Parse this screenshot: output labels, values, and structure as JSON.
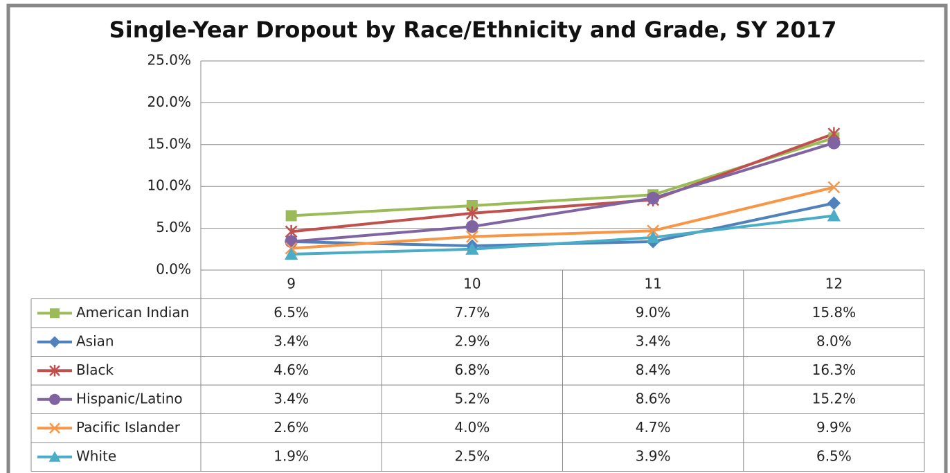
{
  "chart_data": {
    "type": "line",
    "title": "Single-Year Dropout by Race/Ethnicity and Grade, SY 2017",
    "categories": [
      "9",
      "10",
      "11",
      "12"
    ],
    "ylim": [
      0,
      25
    ],
    "yticks": [
      {
        "value": 0,
        "label": "0.0%"
      },
      {
        "value": 5,
        "label": "5.0%"
      },
      {
        "value": 10,
        "label": "10.0%"
      },
      {
        "value": 15,
        "label": "15.0%"
      },
      {
        "value": 20,
        "label": "20.0%"
      },
      {
        "value": 25,
        "label": "25.0%"
      }
    ],
    "grid": true,
    "series": [
      {
        "name": "American Indian",
        "color": "#9bbb59",
        "marker": "square",
        "values": [
          6.5,
          7.7,
          9.0,
          15.8
        ],
        "value_labels": [
          "6.5%",
          "7.7%",
          "9.0%",
          "15.8%"
        ]
      },
      {
        "name": "Asian",
        "color": "#4f81bd",
        "marker": "diamond",
        "values": [
          3.4,
          2.9,
          3.4,
          8.0
        ],
        "value_labels": [
          "3.4%",
          "2.9%",
          "3.4%",
          "8.0%"
        ]
      },
      {
        "name": "Black",
        "color": "#c0504d",
        "marker": "star",
        "values": [
          4.6,
          6.8,
          8.4,
          16.3
        ],
        "value_labels": [
          "4.6%",
          "6.8%",
          "8.4%",
          "16.3%"
        ]
      },
      {
        "name": "Hispanic/Latino",
        "color": "#8064a2",
        "marker": "circle",
        "values": [
          3.4,
          5.2,
          8.6,
          15.2
        ],
        "value_labels": [
          "3.4%",
          "5.2%",
          "8.6%",
          "15.2%"
        ]
      },
      {
        "name": "Pacific Islander",
        "color": "#f79646",
        "marker": "x",
        "values": [
          2.6,
          4.0,
          4.7,
          9.9
        ],
        "value_labels": [
          "2.6%",
          "4.0%",
          "4.7%",
          "9.9%"
        ]
      },
      {
        "name": "White",
        "color": "#4bacc6",
        "marker": "triangle",
        "values": [
          1.9,
          2.5,
          3.9,
          6.5
        ],
        "value_labels": [
          "1.9%",
          "2.5%",
          "3.9%",
          "6.5%"
        ]
      }
    ]
  }
}
